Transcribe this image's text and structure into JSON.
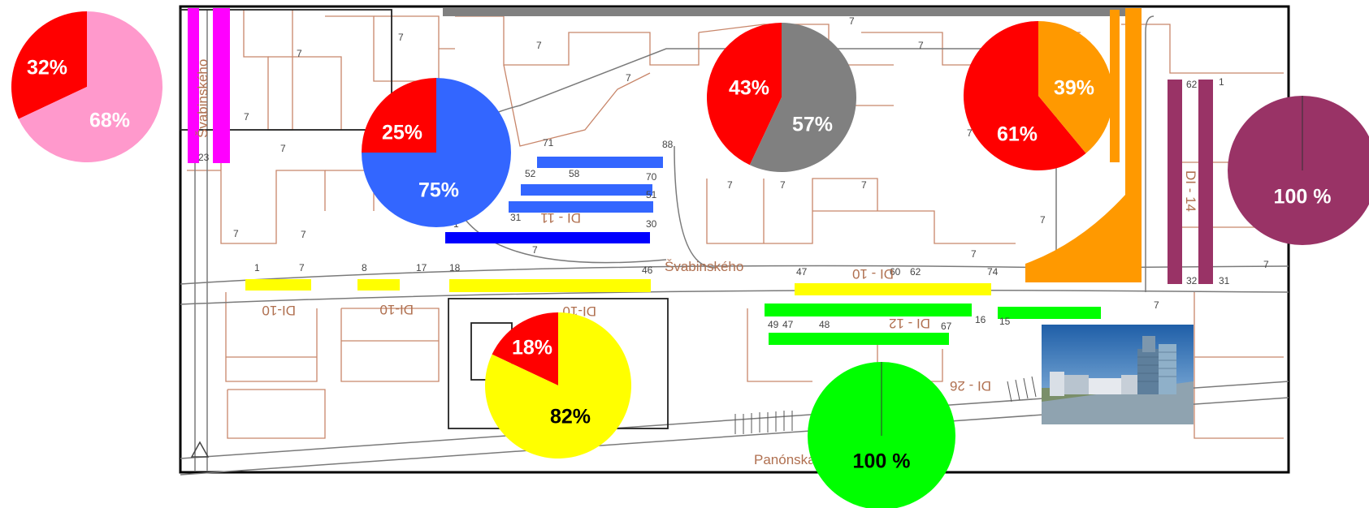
{
  "map": {
    "streets": {
      "svabinskeho_main": "Švabinského",
      "svabinskeho_vertical": "Švabinského",
      "panonska": "Panónska"
    },
    "block_labels": {
      "dl10_a": "DI-10",
      "dl10_b": "DI-10",
      "dl10_c": "DI-10",
      "dl10_d": "DI - 10",
      "dl11": "DI - 11",
      "dl12": "DI - 12",
      "dl14": "DI - 14",
      "dl26": "DI - 26"
    },
    "parcel_marks": [
      "7",
      "7",
      "7",
      "7",
      "7",
      "7",
      "7",
      "7",
      "7",
      "7",
      "7",
      "7",
      "7",
      "7",
      "7",
      "7",
      "7",
      "7",
      "7",
      "7"
    ],
    "space_numbers": {
      "n1": "1",
      "n7": "7",
      "n8": "8",
      "n17": "17",
      "n18": "18",
      "n46": "46",
      "n47": "47",
      "n62": "62",
      "n60": "60",
      "n74": "74",
      "n71": "71",
      "n88": "88",
      "n52": "52",
      "n58": "58",
      "n70": "70",
      "n31": "31",
      "n51": "51",
      "n30": "30",
      "n1b": "1",
      "n23": "23",
      "n32": "32",
      "n31b": "31",
      "n62b": "62",
      "n1c": "1",
      "n48": "48",
      "n47b": "47",
      "n49": "49",
      "n67": "67",
      "n16": "16",
      "n15": "15"
    }
  },
  "colors": {
    "pink": "#ff99cc",
    "magenta": "#ff00ff",
    "blue": "#3366ff",
    "gray": "#808080",
    "orange": "#ff9900",
    "purple": "#993366",
    "yellow": "#ffff00",
    "green": "#00ff00",
    "red": "#ff0000",
    "dark_blue": "#0000ff"
  },
  "pies": [
    {
      "id": "pink",
      "color_key": "pink",
      "segments": [
        {
          "label": "32%",
          "value": 32,
          "color": "#ff0000"
        },
        {
          "label": "68%",
          "value": 68,
          "color": "#ff99cc"
        }
      ]
    },
    {
      "id": "blue",
      "color_key": "blue",
      "segments": [
        {
          "label": "25%",
          "value": 25,
          "color": "#ff0000"
        },
        {
          "label": "75%",
          "value": 75,
          "color": "#3366ff"
        }
      ]
    },
    {
      "id": "gray",
      "color_key": "gray",
      "segments": [
        {
          "label": "43%",
          "value": 43,
          "color": "#ff0000"
        },
        {
          "label": "57%",
          "value": 57,
          "color": "#808080"
        }
      ]
    },
    {
      "id": "orange",
      "color_key": "orange",
      "segments": [
        {
          "label": "61%",
          "value": 61,
          "color": "#ff0000"
        },
        {
          "label": "39%",
          "value": 39,
          "color": "#ff9900"
        }
      ]
    },
    {
      "id": "purple",
      "color_key": "purple",
      "segments": [
        {
          "label": "100 %",
          "value": 100,
          "color": "#993366"
        }
      ]
    },
    {
      "id": "yellow",
      "color_key": "yellow",
      "segments": [
        {
          "label": "18%",
          "value": 18,
          "color": "#ff0000"
        },
        {
          "label": "82%",
          "value": 82,
          "color": "#ffff00"
        }
      ]
    },
    {
      "id": "green",
      "color_key": "green",
      "segments": [
        {
          "label": "100 %",
          "value": 100,
          "color": "#00ff00"
        }
      ]
    }
  ],
  "photo": {
    "icon": "building-photo"
  }
}
